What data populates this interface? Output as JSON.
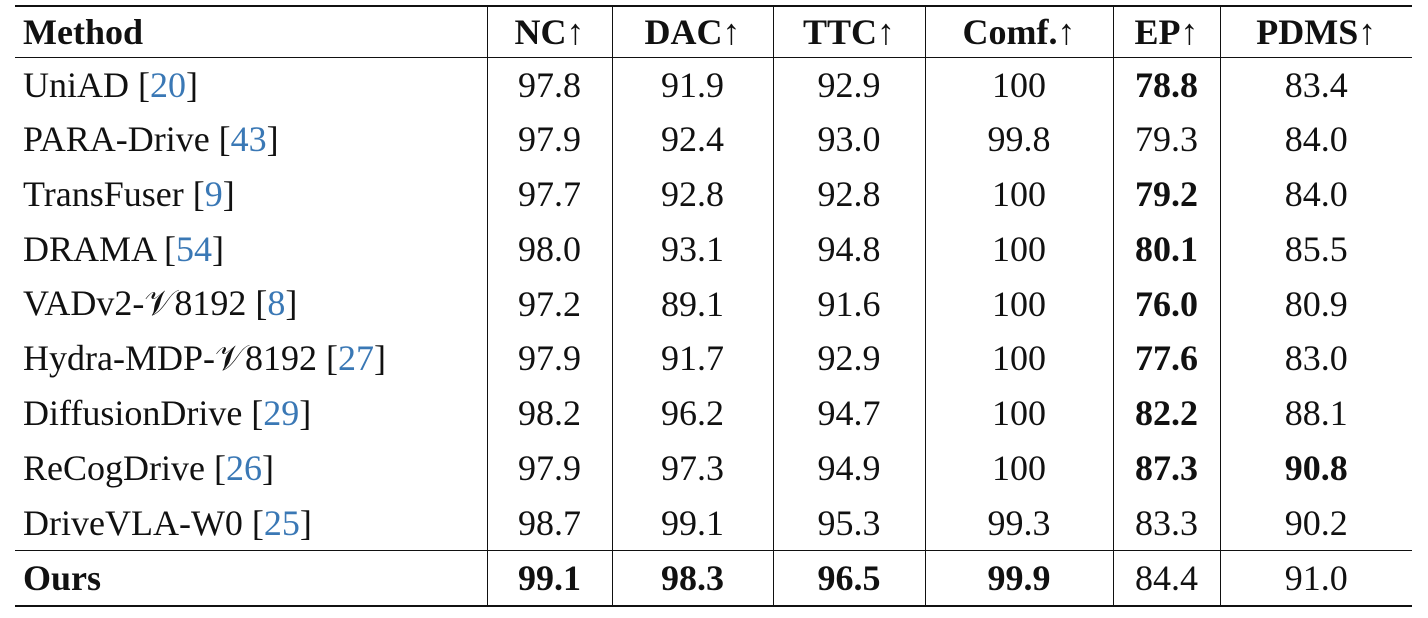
{
  "table": {
    "header": [
      "Method",
      "NC↑",
      "DAC↑",
      "TTC↑",
      "Comf.↑",
      "EP↑",
      "PDMS↑"
    ],
    "rows": [
      [
        [
          "UniAD [",
          "20",
          "]"
        ],
        "97.8",
        "91.9",
        "92.9",
        "100",
        "78.8",
        "83.4"
      ],
      [
        [
          "PARA-Drive [",
          "43",
          "]"
        ],
        "97.9",
        "92.4",
        "93.0",
        "99.8",
        "79.3",
        "84.0"
      ],
      [
        [
          "TransFuser [",
          "9",
          "]"
        ],
        "97.7",
        "92.8",
        "92.8",
        "100",
        "79.2",
        "84.0"
      ],
      [
        [
          "DRAMA [",
          "54",
          "]"
        ],
        "98.0",
        "93.1",
        "94.8",
        "100",
        "80.1",
        "85.5"
      ],
      [
        [
          "VADv2-𝒱8192 [",
          "8",
          "]"
        ],
        "97.2",
        "89.1",
        "91.6",
        "100",
        "76.0",
        "80.9"
      ],
      [
        [
          "Hydra-MDP-𝒱8192 [",
          "27",
          "]"
        ],
        "97.9",
        "91.7",
        "92.9",
        "100",
        "77.6",
        "83.0"
      ],
      [
        [
          "DiffusionDrive [",
          "29",
          "]"
        ],
        "98.2",
        "96.2",
        "94.7",
        "100",
        "82.2",
        "88.1"
      ],
      [
        [
          "ReCogDrive [",
          "26",
          "]"
        ],
        "97.9",
        "97.3",
        "94.9",
        "100",
        "87.3",
        "90.8"
      ],
      [
        [
          "DriveVLA-W0 [",
          "25",
          "]"
        ],
        "98.7",
        "99.1",
        "95.3",
        "99.3",
        "83.3",
        "90.2"
      ],
      [
        [
          "Ours"
        ],
        "99.1",
        "98.3",
        "96.5",
        "99.9",
        "84.4",
        "91.0"
      ]
    ]
  }
}
